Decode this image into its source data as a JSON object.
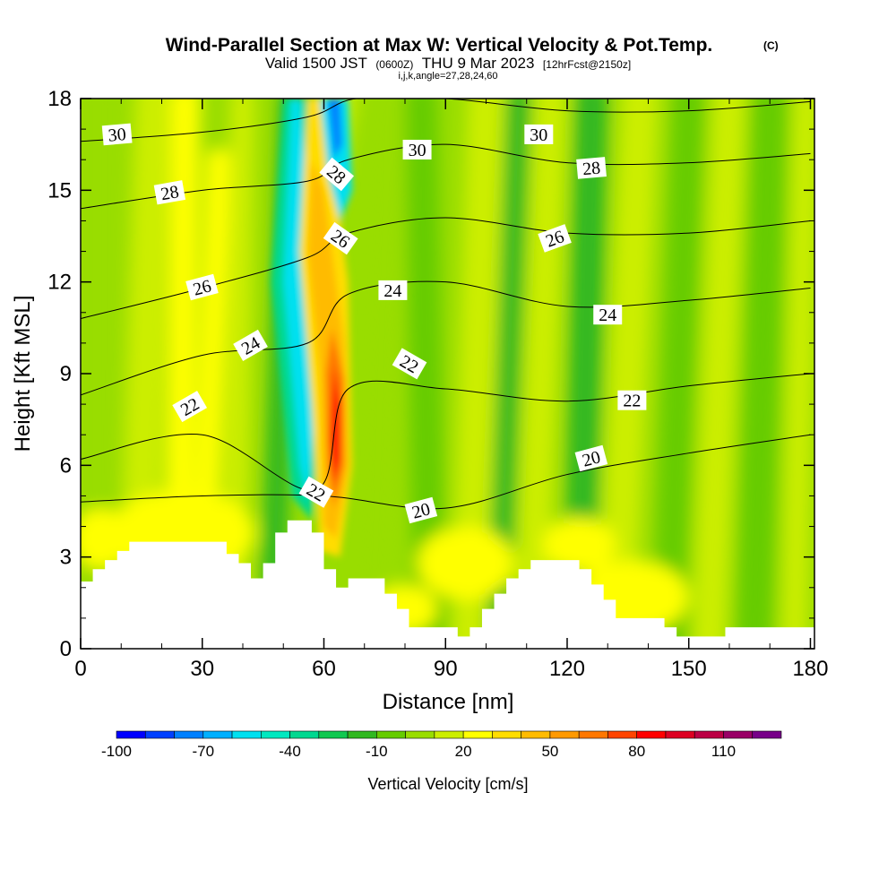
{
  "chart_data": {
    "type": "heatmap",
    "title": "Wind-Parallel Section at Max W: Vertical Velocity & Pot.Temp.",
    "title_mark": "(C)",
    "subtitle": {
      "valid": "Valid 1500 JST",
      "utc": "(0600Z)",
      "date": "THU 9 Mar 2023",
      "fcst": "[12hrFcst@2150z]"
    },
    "indices": "i,j,k,angle=27,28,24,60",
    "xlabel": "Distance [nm]",
    "ylabel": "Height [Kft MSL]",
    "xlim": [
      0,
      181
    ],
    "ylim": [
      0,
      18
    ],
    "x_ticks": [
      "0",
      "30",
      "60",
      "90",
      "120",
      "150",
      "180"
    ],
    "y_ticks": [
      "0",
      "3",
      "6",
      "9",
      "12",
      "15",
      "18"
    ],
    "colorbar": {
      "label": "Vertical Velocity [cm/s]",
      "tick_labels": [
        "-100",
        "-70",
        "-40",
        "-10",
        "20",
        "50",
        "80",
        "110"
      ],
      "tick_values": [
        -100,
        -70,
        -40,
        -10,
        20,
        50,
        80,
        110
      ],
      "bins": [
        {
          "from": -100,
          "to": -90,
          "color": "#0000ff"
        },
        {
          "from": -90,
          "to": -80,
          "color": "#0040ff"
        },
        {
          "from": -80,
          "to": -70,
          "color": "#0080ff"
        },
        {
          "from": -70,
          "to": -60,
          "color": "#00b0ff"
        },
        {
          "from": -60,
          "to": -50,
          "color": "#00e0f0"
        },
        {
          "from": -50,
          "to": -40,
          "color": "#00e8c0"
        },
        {
          "from": -40,
          "to": -30,
          "color": "#00d890"
        },
        {
          "from": -30,
          "to": -20,
          "color": "#10c850"
        },
        {
          "from": -20,
          "to": -10,
          "color": "#30b820"
        },
        {
          "from": -10,
          "to": 0,
          "color": "#66cc00"
        },
        {
          "from": 0,
          "to": 10,
          "color": "#99dd00"
        },
        {
          "from": 10,
          "to": 20,
          "color": "#ccee00"
        },
        {
          "from": 20,
          "to": 30,
          "color": "#ffff00"
        },
        {
          "from": 30,
          "to": 40,
          "color": "#ffdd00"
        },
        {
          "from": 40,
          "to": 50,
          "color": "#ffbb00"
        },
        {
          "from": 50,
          "to": 60,
          "color": "#ff9900"
        },
        {
          "from": 60,
          "to": 70,
          "color": "#ff7700"
        },
        {
          "from": 70,
          "to": 80,
          "color": "#ff4400"
        },
        {
          "from": 80,
          "to": 90,
          "color": "#ff0000"
        },
        {
          "from": 90,
          "to": 100,
          "color": "#dd0022"
        },
        {
          "from": 100,
          "to": 110,
          "color": "#bb0044"
        },
        {
          "from": 110,
          "to": 120,
          "color": "#990066"
        },
        {
          "from": 120,
          "to": 130,
          "color": "#770088"
        }
      ]
    },
    "terrain_profile": {
      "distance_nm": [
        0,
        3,
        6,
        9,
        12,
        15,
        18,
        21,
        24,
        27,
        30,
        33,
        36,
        39,
        42,
        45,
        48,
        51,
        54,
        57,
        60,
        63,
        66,
        69,
        72,
        75,
        78,
        81,
        84,
        87,
        90,
        93,
        96,
        99,
        102,
        105,
        108,
        111,
        114,
        117,
        120,
        123,
        126,
        129,
        132,
        135,
        138,
        141,
        144,
        147,
        150,
        153,
        156,
        159,
        162,
        165,
        168,
        171,
        174,
        177,
        180
      ],
      "height_kft": [
        2.2,
        2.6,
        2.9,
        3.2,
        3.5,
        3.5,
        3.5,
        3.5,
        3.5,
        3.5,
        3.5,
        3.5,
        3.1,
        2.8,
        2.3,
        2.8,
        3.8,
        4.2,
        4.2,
        3.8,
        2.6,
        2.0,
        2.3,
        2.3,
        2.3,
        1.8,
        1.3,
        0.7,
        0.7,
        0.7,
        0.7,
        0.4,
        0.7,
        1.3,
        1.8,
        2.3,
        2.6,
        2.9,
        2.9,
        2.9,
        2.9,
        2.6,
        2.1,
        1.6,
        1.0,
        1.0,
        1.0,
        1.0,
        0.7,
        0.4,
        0.4,
        0.4,
        0.4,
        0.7,
        0.7,
        0.7,
        0.7,
        0.7,
        0.7,
        0.7,
        0.7
      ]
    },
    "theta_contours": [
      {
        "label": "20",
        "distance_nm": [
          0,
          30,
          60,
          90,
          120,
          150,
          180
        ],
        "height_kft": [
          4.8,
          5.0,
          5.0,
          4.6,
          5.7,
          6.4,
          7.0
        ]
      },
      {
        "label": "22",
        "distance_nm": [
          0,
          30,
          58,
          66,
          90,
          120,
          150,
          180
        ],
        "height_kft": [
          6.2,
          7.0,
          5.2,
          8.5,
          8.5,
          8.1,
          8.6,
          9.0
        ]
      },
      {
        "label": "24",
        "distance_nm": [
          0,
          30,
          56,
          66,
          90,
          120,
          150,
          180
        ],
        "height_kft": [
          8.3,
          9.6,
          10.0,
          11.6,
          12.0,
          11.2,
          11.4,
          11.8
        ]
      },
      {
        "label": "26",
        "distance_nm": [
          0,
          30,
          56,
          66,
          90,
          120,
          150,
          180
        ],
        "height_kft": [
          10.8,
          11.8,
          12.8,
          13.6,
          14.1,
          13.6,
          13.6,
          14.0
        ]
      },
      {
        "label": "28",
        "distance_nm": [
          0,
          30,
          56,
          66,
          90,
          120,
          150,
          180
        ],
        "height_kft": [
          14.4,
          15.0,
          15.3,
          16.0,
          16.5,
          15.9,
          15.9,
          16.2
        ]
      },
      {
        "label": "30",
        "distance_nm": [
          0,
          30,
          56,
          68,
          90,
          120,
          150,
          180
        ],
        "height_kft": [
          16.6,
          16.9,
          17.4,
          18.0,
          18.0,
          17.6,
          17.6,
          17.9
        ]
      }
    ],
    "contour_labels": [
      {
        "text": "30",
        "x": 9,
        "y": 16.8,
        "angle": -5
      },
      {
        "text": "28",
        "x": 22,
        "y": 14.9,
        "angle": -10
      },
      {
        "text": "26",
        "x": 30,
        "y": 11.8,
        "angle": -15
      },
      {
        "text": "24",
        "x": 42,
        "y": 9.9,
        "angle": -30
      },
      {
        "text": "22",
        "x": 27,
        "y": 7.9,
        "angle": -30
      },
      {
        "text": "30",
        "x": 83,
        "y": 16.3,
        "angle": 0
      },
      {
        "text": "30",
        "x": 113,
        "y": 16.8,
        "angle": 0
      },
      {
        "text": "28",
        "x": 63,
        "y": 15.5,
        "angle": 40
      },
      {
        "text": "28",
        "x": 126,
        "y": 15.7,
        "angle": -5
      },
      {
        "text": "26",
        "x": 64,
        "y": 13.4,
        "angle": 35
      },
      {
        "text": "26",
        "x": 117,
        "y": 13.4,
        "angle": -20
      },
      {
        "text": "24",
        "x": 77,
        "y": 11.7,
        "angle": 0
      },
      {
        "text": "24",
        "x": 130,
        "y": 10.9,
        "angle": 0
      },
      {
        "text": "22",
        "x": 81,
        "y": 9.3,
        "angle": 30
      },
      {
        "text": "22",
        "x": 136,
        "y": 8.1,
        "angle": 0
      },
      {
        "text": "22",
        "x": 58,
        "y": 5.1,
        "angle": 30
      },
      {
        "text": "20",
        "x": 84,
        "y": 4.5,
        "angle": -15
      },
      {
        "text": "20",
        "x": 126,
        "y": 6.2,
        "angle": -15
      }
    ],
    "velocity_features": [
      {
        "kind": "updraft",
        "center_x": 62,
        "center_y": 7.5,
        "peak_cm_s": 85
      },
      {
        "kind": "downdraft",
        "center_x": 55,
        "center_y": 8.0,
        "peak_cm_s": -55
      },
      {
        "kind": "downdraft",
        "center_x": 63,
        "center_y": 17.0,
        "peak_cm_s": -75
      }
    ]
  },
  "colors": {
    "background": "#ffffff",
    "terrain": "#ffffff",
    "field_base": "#99dd00"
  }
}
